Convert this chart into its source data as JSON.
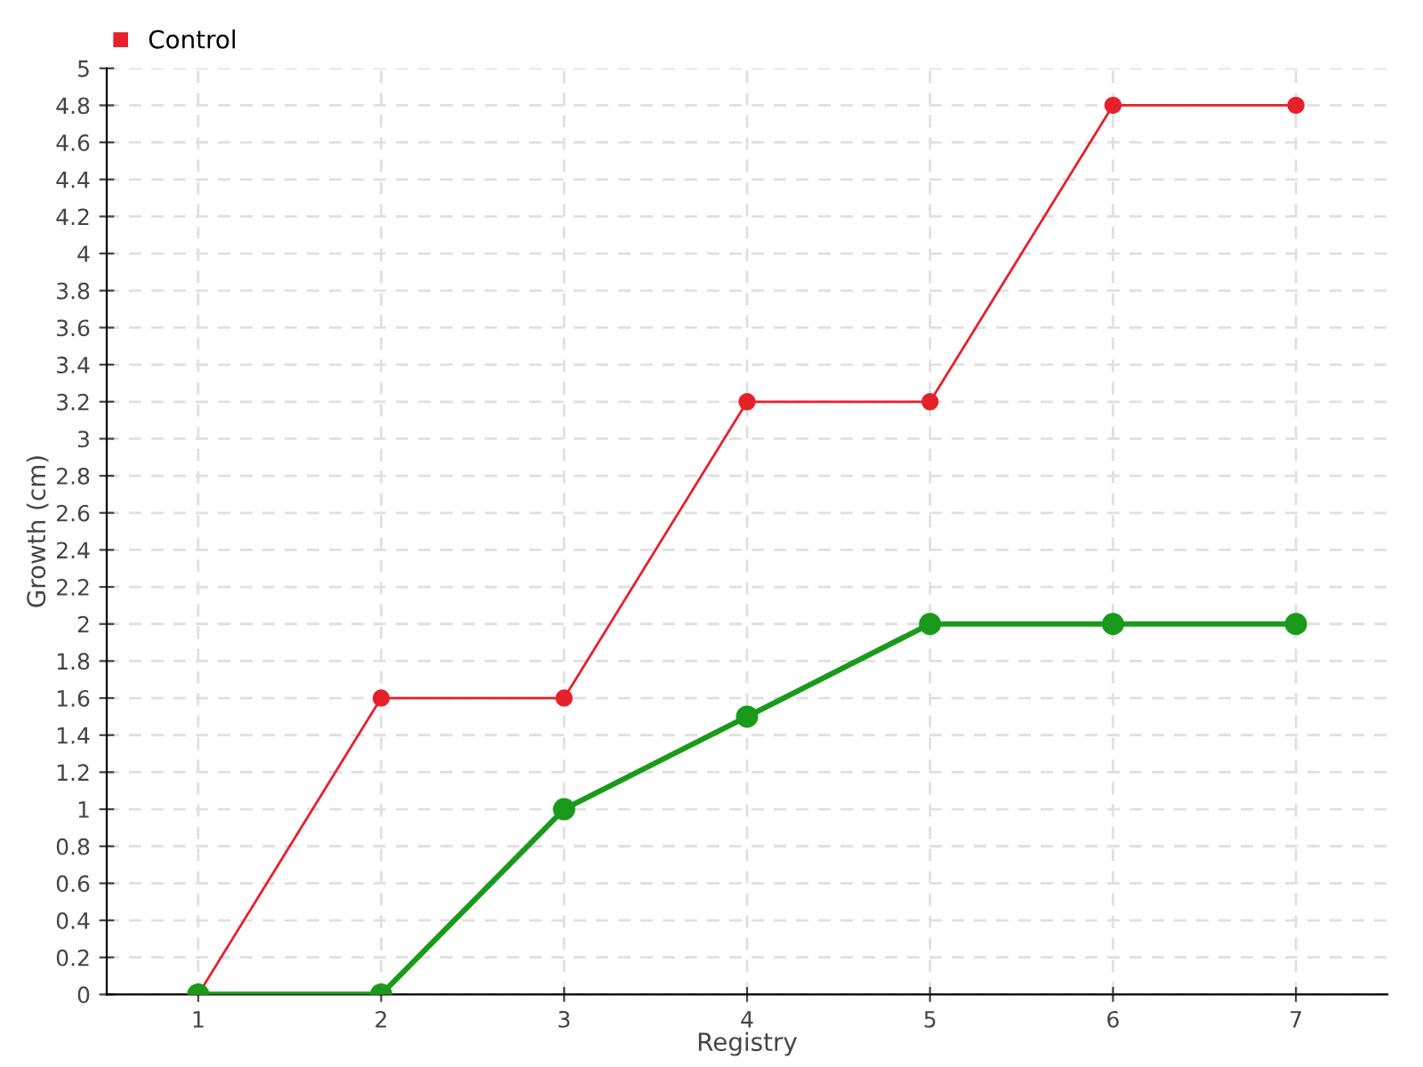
{
  "chart_data": {
    "type": "line",
    "xlabel": "Registry",
    "ylabel": "Growth (cm)",
    "categories": [
      "1",
      "2",
      "3",
      "4",
      "5",
      "6",
      "7"
    ],
    "series": [
      {
        "color": "#1a9a1a",
        "values": [
          0,
          0,
          1,
          1.5,
          2,
          2,
          2
        ]
      },
      {
        "name": "Control",
        "color": "#e8202a",
        "values": [
          0,
          1.6,
          1.6,
          3.2,
          3.2,
          4.8,
          4.8
        ]
      }
    ],
    "ylim": [
      0,
      5
    ],
    "yticks": [
      0,
      0.2,
      0.4,
      0.6,
      0.8,
      1,
      1.2,
      1.4,
      1.6,
      1.8,
      2,
      2.2,
      2.4,
      2.6,
      2.8,
      3,
      3.2,
      3.4,
      3.6,
      3.8,
      4,
      4.2,
      4.4,
      4.6,
      4.8,
      5
    ],
    "grid": true,
    "legend": "top left",
    "marker": "circle",
    "line_style": "solid"
  }
}
